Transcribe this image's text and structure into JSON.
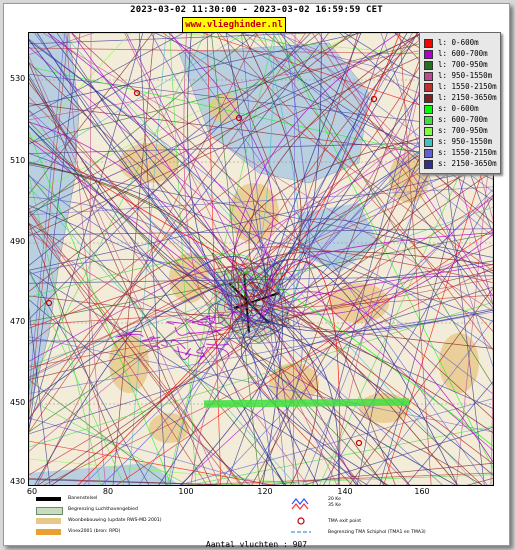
{
  "header": {
    "title": "2023-03-02 11:30:00 - 2023-03-02 16:59:59 CET",
    "site_badge": "www.vlieghinder.nl"
  },
  "map": {
    "y_ticks": [
      "530",
      "510",
      "490",
      "470",
      "450",
      "430"
    ],
    "x_ticks": [
      "60",
      "80",
      "100",
      "120",
      "140",
      "160"
    ],
    "colors": {
      "water": "#b8d0e0",
      "land": "#f2ecd8",
      "urban": "#e8c88a",
      "airport": "#c8dcc0"
    }
  },
  "legend": {
    "items": [
      {
        "label": "l: 0-600m",
        "color": "#ff0000"
      },
      {
        "label": "l: 600-700m",
        "color": "#b000d0"
      },
      {
        "label": "l: 700-950m",
        "color": "#287020"
      },
      {
        "label": "l: 950-1550m",
        "color": "#c04890"
      },
      {
        "label": "l: 1550-2150m",
        "color": "#c03030"
      },
      {
        "label": "l: 2150-3650m",
        "color": "#802020"
      },
      {
        "label": "s: 0-600m",
        "color": "#00ff00"
      },
      {
        "label": "s: 600-700m",
        "color": "#40e040"
      },
      {
        "label": "s: 700-950m",
        "color": "#80ff40"
      },
      {
        "label": "s: 950-1550m",
        "color": "#40c0c0"
      },
      {
        "label": "s: 1550-2150m",
        "color": "#6060d0"
      },
      {
        "label": "s: 2150-3650m",
        "color": "#303090"
      }
    ]
  },
  "bottom_legend": {
    "baan": "Banenstelsel",
    "begrenzing": "Begrenzing Luchthavengebied",
    "woon": "Woonbebouwing (update RWS-MD 2001)",
    "vinex": "Vinex2001 (bron: RPD)",
    "ke1": "20 Ke",
    "ke2": "35 Ke",
    "tma_exit": "TMA exit point",
    "tma_border": "Begrenzing TMA Schiphol  (TMA1 en TMA3)"
  },
  "footer": {
    "text": "Aantal vluchten : 907"
  }
}
